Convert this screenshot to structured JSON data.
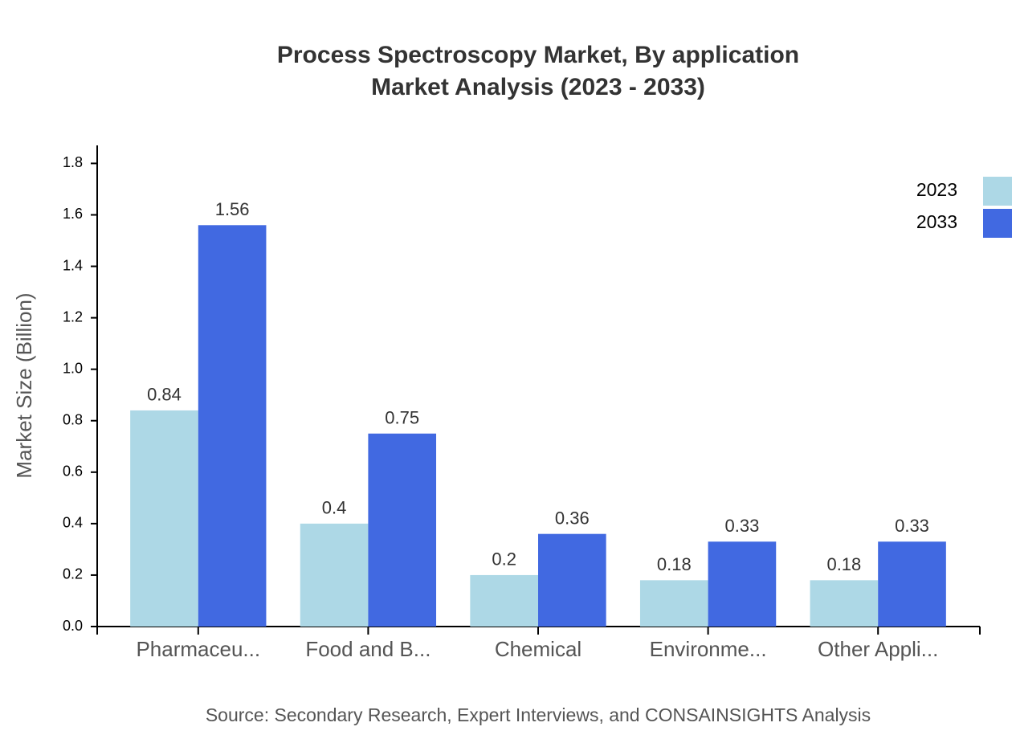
{
  "chart_data": {
    "type": "bar",
    "title": "Process Spectroscopy Market, By application",
    "subtitle": "Market Analysis (2023 - 2033)",
    "y_label": "Market Size (Billion)",
    "source": "Source: Secondary Research, Expert Interviews, and CONSAINSIGHTS Analysis",
    "categories": [
      "Pharmaceu...",
      "Food and B...",
      "Chemical",
      "Environme...",
      "Other Appli..."
    ],
    "series": [
      {
        "name": "2023",
        "color": "#add8e6",
        "values": [
          0.84,
          0.4,
          0.2,
          0.18,
          0.18
        ]
      },
      {
        "name": "2033",
        "color": "#4169e1",
        "values": [
          1.56,
          0.75,
          0.36,
          0.33,
          0.33
        ]
      }
    ],
    "ylim": [
      0,
      1.87
    ],
    "yticks": [
      {
        "value": 0,
        "label": "0.0"
      },
      0.2,
      0.4,
      0.6,
      0.8,
      {
        "value": 1,
        "label": "1.0"
      },
      1.2,
      1.4,
      1.6,
      1.8
    ],
    "grid": false,
    "legend": "top-right"
  }
}
